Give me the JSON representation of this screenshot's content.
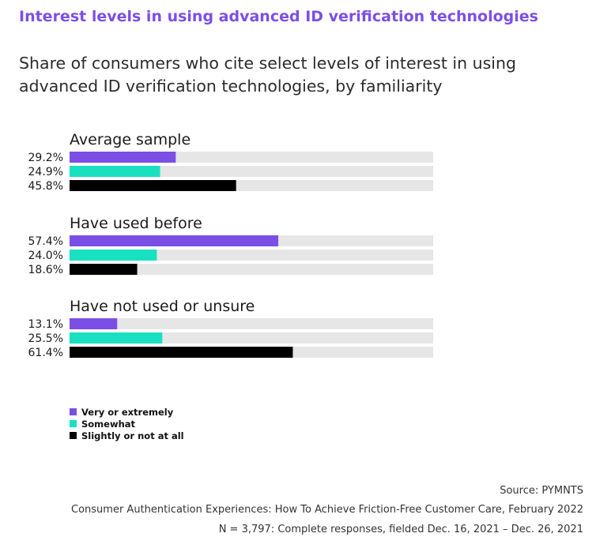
{
  "header": {
    "title": "Interest levels in using advanced ID verification technologies",
    "subtitle": "Share of consumers who cite select levels of interest in using advanced ID verification technologies, by familiarity"
  },
  "colors": {
    "title": "#7b4fe6",
    "very_or_extremely": "#7b4fe6",
    "somewhat": "#19e0c0",
    "slightly_or_not": "#000000",
    "track": "#e6e6e6"
  },
  "chart_data": {
    "type": "bar",
    "orientation": "horizontal",
    "xlim": [
      0,
      100
    ],
    "value_suffix": "%",
    "legend_position": "bottom-left",
    "groups": [
      {
        "name": "Average sample",
        "values": [
          29.2,
          24.9,
          45.8
        ],
        "labels": [
          "29.2%",
          "24.9%",
          "45.8%"
        ]
      },
      {
        "name": "Have used before",
        "values": [
          57.4,
          24.0,
          18.6
        ],
        "labels": [
          "57.4%",
          "24.0%",
          "18.6%"
        ]
      },
      {
        "name": "Have not used or unsure",
        "values": [
          13.1,
          25.5,
          61.4
        ],
        "labels": [
          "13.1%",
          "25.5%",
          "61.4%"
        ]
      }
    ],
    "series": [
      {
        "name": "Very or extremely",
        "color": "#7b4fe6"
      },
      {
        "name": "Somewhat",
        "color": "#19e0c0"
      },
      {
        "name": "Slightly or not at all",
        "color": "#000000"
      }
    ]
  },
  "footer": {
    "source": "Source: PYMNTS",
    "report": "Consumer Authentication Experiences: How To Achieve Friction-Free Customer Care, February 2022",
    "sample": "N = 3,797: Complete responses, fielded Dec. 16, 2021 – Dec. 26, 2021"
  }
}
